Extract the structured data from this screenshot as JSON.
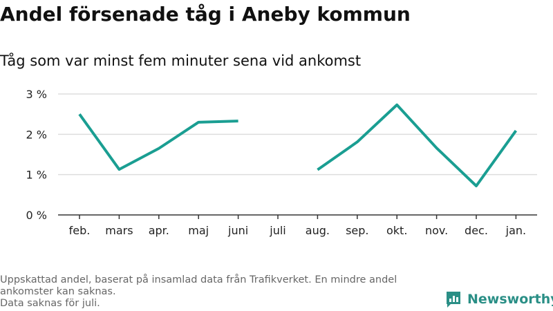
{
  "title": "Andel försenade tåg i Aneby kommun",
  "subtitle": "Tåg som var minst fem minuter sena vid ankomst",
  "footnote": {
    "line1": "Uppskattad andel, baserat på insamlad data från Trafikverket. En mindre andel ankomster kan saknas.",
    "line2": "Data saknas för juli."
  },
  "brand": {
    "name": "Newsworthy",
    "icon": "bar-chart-logo-icon"
  },
  "colors": {
    "line": "#1a9e92",
    "grid": "#dddddd",
    "axis": "#333333",
    "brand": "#2a8f86"
  },
  "chart_data": {
    "type": "line",
    "title": "Andel försenade tåg i Aneby kommun",
    "subtitle": "Tåg som var minst fem minuter sena vid ankomst",
    "xlabel": "",
    "ylabel": "",
    "categories": [
      "feb.",
      "mars",
      "apr.",
      "maj",
      "juni",
      "juli",
      "aug.",
      "sep.",
      "okt.",
      "nov.",
      "dec.",
      "jan."
    ],
    "y_tick_labels": [
      "0 %",
      "1 %",
      "2 %",
      "3 %"
    ],
    "y_ticks": [
      0,
      1,
      2,
      3
    ],
    "ylim": [
      0,
      3
    ],
    "grid": true,
    "series": [
      {
        "values": [
          2.5,
          1.13,
          1.65,
          2.3,
          2.33,
          null,
          1.12,
          1.81,
          2.73,
          1.66,
          0.72,
          2.09
        ]
      }
    ]
  }
}
